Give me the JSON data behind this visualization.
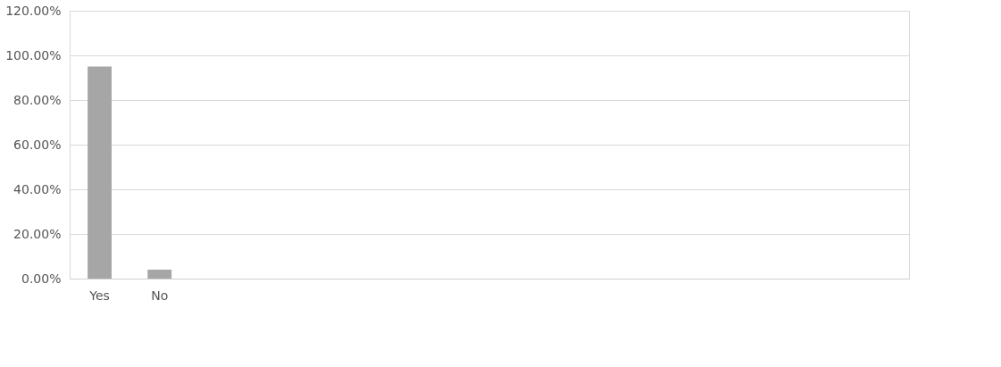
{
  "chart_data": {
    "type": "bar",
    "categories": [
      "Yes",
      "No",
      null,
      null,
      null,
      null,
      null,
      null,
      null,
      null,
      null,
      null,
      null,
      null
    ],
    "values": [
      95,
      4,
      null,
      null,
      null,
      null,
      null,
      null,
      null,
      null,
      null,
      null,
      null,
      null
    ],
    "color": "#a6a6a6",
    "ylim": [
      0,
      120
    ],
    "yticks": [
      {
        "value": 0,
        "label": "0.00%"
      },
      {
        "value": 20,
        "label": "20.00%"
      },
      {
        "value": 40,
        "label": "40.00%"
      },
      {
        "value": 60,
        "label": "60.00%"
      },
      {
        "value": 80,
        "label": "80.00%"
      },
      {
        "value": 100,
        "label": "100.00%"
      },
      {
        "value": 120,
        "label": "120.00%"
      }
    ],
    "grid": "y"
  }
}
